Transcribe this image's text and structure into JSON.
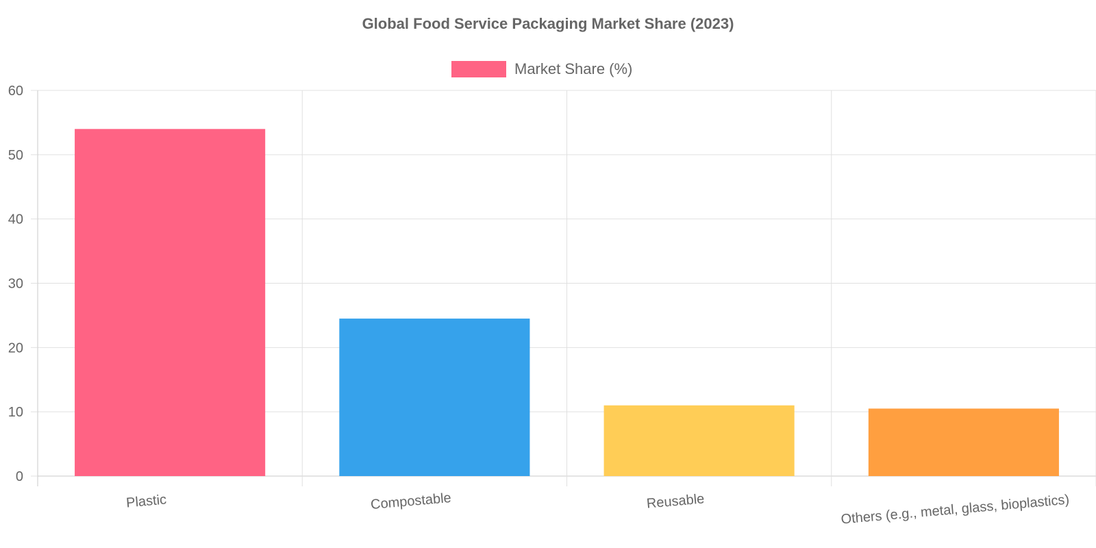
{
  "chart_data": {
    "type": "bar",
    "title": "Global Food Service Packaging Market Share (2023)",
    "categories": [
      "Plastic",
      "Compostable",
      "Reusable",
      "Others (e.g., metal, glass, bioplastics)"
    ],
    "series": [
      {
        "name": "Market Share (%)",
        "values": [
          54,
          24.5,
          11,
          10.5
        ],
        "colors": [
          "#ff6384",
          "#36a2eb",
          "#ffcd56",
          "#ff9f40"
        ]
      }
    ],
    "legend_color": "#ff6384",
    "ylim": [
      0,
      60
    ],
    "yticks": [
      0,
      10,
      20,
      30,
      40,
      50,
      60
    ],
    "grid": true,
    "legend_position": "top"
  }
}
